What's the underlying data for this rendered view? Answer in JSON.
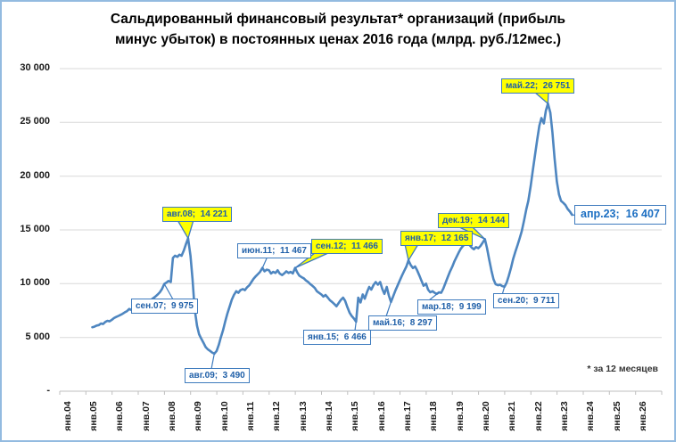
{
  "colors": {
    "line": "#4e86c0",
    "grid": "#d9d9d9",
    "axis": "#bfbfbf",
    "page_border": "#93bbe0",
    "callout_border": "#3e7bbe",
    "callout_text": "#1f5fa8",
    "highlight_fill": "#ffff00",
    "end_label_text": "#1b6ec2"
  },
  "chart_data": {
    "type": "line",
    "title": "Сальдированный финансовый результат* организаций (прибыль\nминус убыток) в постоянных ценах 2016 года (млрд. руб./12мес.)",
    "footnote": "* за 12 месяцев",
    "xlabel": "",
    "ylabel": "",
    "ylim": [
      0,
      30000
    ],
    "ytick_step": 5000,
    "grid": "horizontal",
    "legend": "none",
    "y_tick_labels": [
      "-",
      "5 000",
      "10 000",
      "15 000",
      "20 000",
      "25 000",
      "30 000"
    ],
    "x_categories": [
      "янв.04",
      "янв.05",
      "янв.06",
      "янв.07",
      "янв.08",
      "янв.09",
      "янв.10",
      "янв.11",
      "янв.12",
      "янв.13",
      "янв.14",
      "янв.15",
      "янв.16",
      "янв.17",
      "янв.18",
      "янв.19",
      "янв.20",
      "янв.21",
      "янв.22",
      "янв.23",
      "янв.24",
      "янв.25",
      "янв.26"
    ],
    "series": [
      {
        "name": "Сальдированный финансовый результат (12-мес., пост. цены 2016)",
        "points": [
          [
            2004.92,
            5950
          ],
          [
            2005.0,
            6000
          ],
          [
            2005.08,
            6100
          ],
          [
            2005.17,
            6150
          ],
          [
            2005.25,
            6300
          ],
          [
            2005.33,
            6250
          ],
          [
            2005.42,
            6450
          ],
          [
            2005.5,
            6550
          ],
          [
            2005.58,
            6500
          ],
          [
            2005.67,
            6650
          ],
          [
            2005.75,
            6800
          ],
          [
            2005.83,
            6900
          ],
          [
            2005.92,
            7000
          ],
          [
            2006.0,
            7100
          ],
          [
            2006.08,
            7200
          ],
          [
            2006.17,
            7350
          ],
          [
            2006.25,
            7450
          ],
          [
            2006.33,
            7650
          ],
          [
            2006.42,
            7550
          ],
          [
            2006.5,
            7600
          ],
          [
            2006.58,
            7800
          ],
          [
            2006.67,
            7950
          ],
          [
            2006.75,
            8050
          ],
          [
            2006.83,
            7900
          ],
          [
            2006.92,
            8050
          ],
          [
            2007.0,
            8200
          ],
          [
            2007.08,
            8350
          ],
          [
            2007.17,
            8500
          ],
          [
            2007.25,
            8650
          ],
          [
            2007.33,
            8800
          ],
          [
            2007.42,
            9000
          ],
          [
            2007.5,
            9200
          ],
          [
            2007.58,
            9500
          ],
          [
            2007.67,
            9975
          ],
          [
            2007.75,
            10100
          ],
          [
            2007.83,
            10250
          ],
          [
            2007.92,
            10150
          ],
          [
            2008.0,
            12400
          ],
          [
            2008.08,
            12600
          ],
          [
            2008.17,
            12500
          ],
          [
            2008.25,
            12700
          ],
          [
            2008.33,
            12600
          ],
          [
            2008.42,
            13100
          ],
          [
            2008.5,
            13700
          ],
          [
            2008.58,
            14221
          ],
          [
            2008.67,
            12600
          ],
          [
            2008.75,
            10400
          ],
          [
            2008.83,
            7700
          ],
          [
            2008.92,
            6100
          ],
          [
            2009.0,
            5300
          ],
          [
            2009.08,
            4900
          ],
          [
            2009.17,
            4500
          ],
          [
            2009.25,
            4100
          ],
          [
            2009.33,
            3900
          ],
          [
            2009.42,
            3750
          ],
          [
            2009.5,
            3600
          ],
          [
            2009.58,
            3490
          ],
          [
            2009.67,
            3750
          ],
          [
            2009.75,
            4300
          ],
          [
            2009.83,
            5000
          ],
          [
            2009.92,
            5700
          ],
          [
            2010.0,
            6500
          ],
          [
            2010.08,
            7200
          ],
          [
            2010.17,
            7900
          ],
          [
            2010.25,
            8500
          ],
          [
            2010.33,
            8950
          ],
          [
            2010.42,
            9300
          ],
          [
            2010.5,
            9150
          ],
          [
            2010.58,
            9400
          ],
          [
            2010.67,
            9500
          ],
          [
            2010.75,
            9400
          ],
          [
            2010.83,
            9650
          ],
          [
            2010.92,
            9850
          ],
          [
            2011.0,
            10150
          ],
          [
            2011.08,
            10450
          ],
          [
            2011.17,
            10700
          ],
          [
            2011.25,
            10900
          ],
          [
            2011.33,
            11100
          ],
          [
            2011.42,
            11467
          ],
          [
            2011.5,
            11150
          ],
          [
            2011.58,
            11300
          ],
          [
            2011.67,
            11250
          ],
          [
            2011.75,
            10950
          ],
          [
            2011.83,
            11100
          ],
          [
            2011.92,
            11000
          ],
          [
            2012.0,
            11250
          ],
          [
            2012.08,
            10950
          ],
          [
            2012.17,
            10800
          ],
          [
            2012.25,
            10950
          ],
          [
            2012.33,
            11150
          ],
          [
            2012.42,
            11000
          ],
          [
            2012.5,
            11100
          ],
          [
            2012.58,
            10950
          ],
          [
            2012.67,
            11466
          ],
          [
            2012.75,
            11050
          ],
          [
            2012.83,
            10750
          ],
          [
            2012.92,
            10600
          ],
          [
            2013.0,
            10500
          ],
          [
            2013.08,
            10300
          ],
          [
            2013.17,
            10150
          ],
          [
            2013.25,
            9950
          ],
          [
            2013.33,
            9800
          ],
          [
            2013.42,
            9600
          ],
          [
            2013.5,
            9300
          ],
          [
            2013.58,
            9150
          ],
          [
            2013.67,
            9000
          ],
          [
            2013.75,
            8800
          ],
          [
            2013.83,
            8950
          ],
          [
            2013.92,
            8700
          ],
          [
            2014.0,
            8450
          ],
          [
            2014.08,
            8300
          ],
          [
            2014.17,
            8100
          ],
          [
            2014.25,
            7900
          ],
          [
            2014.33,
            8200
          ],
          [
            2014.42,
            8500
          ],
          [
            2014.5,
            8700
          ],
          [
            2014.58,
            8400
          ],
          [
            2014.67,
            7800
          ],
          [
            2014.75,
            7300
          ],
          [
            2014.83,
            7000
          ],
          [
            2014.92,
            6750
          ],
          [
            2015.0,
            6466
          ],
          [
            2015.08,
            8700
          ],
          [
            2015.17,
            8250
          ],
          [
            2015.25,
            9000
          ],
          [
            2015.33,
            8600
          ],
          [
            2015.42,
            9250
          ],
          [
            2015.5,
            9700
          ],
          [
            2015.58,
            9450
          ],
          [
            2015.67,
            9900
          ],
          [
            2015.75,
            10150
          ],
          [
            2015.83,
            9900
          ],
          [
            2015.92,
            10150
          ],
          [
            2016.0,
            9500
          ],
          [
            2016.08,
            9050
          ],
          [
            2016.17,
            9700
          ],
          [
            2016.25,
            8900
          ],
          [
            2016.33,
            8297
          ],
          [
            2016.42,
            8850
          ],
          [
            2016.5,
            9350
          ],
          [
            2016.58,
            9800
          ],
          [
            2016.67,
            10300
          ],
          [
            2016.75,
            10750
          ],
          [
            2016.83,
            11150
          ],
          [
            2016.92,
            11600
          ],
          [
            2017.0,
            12165
          ],
          [
            2017.08,
            11750
          ],
          [
            2017.17,
            11450
          ],
          [
            2017.25,
            11600
          ],
          [
            2017.33,
            11250
          ],
          [
            2017.42,
            10750
          ],
          [
            2017.5,
            10250
          ],
          [
            2017.58,
            9800
          ],
          [
            2017.67,
            10000
          ],
          [
            2017.75,
            9450
          ],
          [
            2017.83,
            9200
          ],
          [
            2017.92,
            9300
          ],
          [
            2018.0,
            9150
          ],
          [
            2018.08,
            9050
          ],
          [
            2018.17,
            9199
          ],
          [
            2018.25,
            9150
          ],
          [
            2018.33,
            9550
          ],
          [
            2018.42,
            10100
          ],
          [
            2018.5,
            10600
          ],
          [
            2018.58,
            11100
          ],
          [
            2018.67,
            11550
          ],
          [
            2018.75,
            12050
          ],
          [
            2018.83,
            12450
          ],
          [
            2018.92,
            12900
          ],
          [
            2019.0,
            13250
          ],
          [
            2019.08,
            13500
          ],
          [
            2019.17,
            13700
          ],
          [
            2019.25,
            13800
          ],
          [
            2019.33,
            13600
          ],
          [
            2019.42,
            13350
          ],
          [
            2019.5,
            13200
          ],
          [
            2019.58,
            13400
          ],
          [
            2019.67,
            13300
          ],
          [
            2019.75,
            13500
          ],
          [
            2019.83,
            13800
          ],
          [
            2019.92,
            14144
          ],
          [
            2020.0,
            13300
          ],
          [
            2020.08,
            12300
          ],
          [
            2020.17,
            11200
          ],
          [
            2020.25,
            10400
          ],
          [
            2020.33,
            9950
          ],
          [
            2020.42,
            9850
          ],
          [
            2020.5,
            9900
          ],
          [
            2020.58,
            9780
          ],
          [
            2020.67,
            9711
          ],
          [
            2020.75,
            10100
          ],
          [
            2020.83,
            10700
          ],
          [
            2020.92,
            11500
          ],
          [
            2021.0,
            12300
          ],
          [
            2021.08,
            12950
          ],
          [
            2021.17,
            13600
          ],
          [
            2021.25,
            14250
          ],
          [
            2021.33,
            14900
          ],
          [
            2021.42,
            15900
          ],
          [
            2021.5,
            16900
          ],
          [
            2021.58,
            17700
          ],
          [
            2021.67,
            19100
          ],
          [
            2021.75,
            20500
          ],
          [
            2021.83,
            21900
          ],
          [
            2021.92,
            23400
          ],
          [
            2022.0,
            24700
          ],
          [
            2022.08,
            25400
          ],
          [
            2022.17,
            24900
          ],
          [
            2022.25,
            26100
          ],
          [
            2022.33,
            26751
          ],
          [
            2022.42,
            25900
          ],
          [
            2022.5,
            24100
          ],
          [
            2022.58,
            21700
          ],
          [
            2022.67,
            19500
          ],
          [
            2022.75,
            18300
          ],
          [
            2022.83,
            17700
          ],
          [
            2022.92,
            17500
          ],
          [
            2023.0,
            17300
          ],
          [
            2023.08,
            16950
          ],
          [
            2023.17,
            16700
          ],
          [
            2023.25,
            16407
          ]
        ]
      }
    ],
    "annotations": [
      {
        "id": "sen07",
        "label": "сен.07;  9 975",
        "year": 2007.67,
        "value": 9975,
        "variant": "white"
      },
      {
        "id": "avg08",
        "label": "авг.08;  14 221",
        "year": 2008.58,
        "value": 14221,
        "variant": "yellow"
      },
      {
        "id": "avg09",
        "label": "авг.09;  3 490",
        "year": 2009.58,
        "value": 3490,
        "variant": "white"
      },
      {
        "id": "iyun11",
        "label": "июн.11;  11 467",
        "year": 2011.42,
        "value": 11467,
        "variant": "white"
      },
      {
        "id": "sen12",
        "label": "сен.12;  11 466",
        "year": 2012.67,
        "value": 11466,
        "variant": "yellow"
      },
      {
        "id": "yanv15",
        "label": "янв.15;  6 466",
        "year": 2015.0,
        "value": 6466,
        "variant": "white"
      },
      {
        "id": "may16",
        "label": "май.16;  8 297",
        "year": 2016.33,
        "value": 8297,
        "variant": "white"
      },
      {
        "id": "yanv17",
        "label": "янв.17;  12 165",
        "year": 2017.0,
        "value": 12165,
        "variant": "yellow"
      },
      {
        "id": "mar18",
        "label": "мар.18;  9 199",
        "year": 2018.17,
        "value": 9199,
        "variant": "white"
      },
      {
        "id": "dek19",
        "label": "дек.19;  14 144",
        "year": 2019.92,
        "value": 14144,
        "variant": "yellow"
      },
      {
        "id": "sen20",
        "label": "сен.20;  9 711",
        "year": 2020.67,
        "value": 9711,
        "variant": "white"
      },
      {
        "id": "may22",
        "label": "май.22;  26 751",
        "year": 2022.33,
        "value": 26751,
        "variant": "yellow"
      },
      {
        "id": "apr23",
        "label": "апр.23;  16 407",
        "year": 2023.25,
        "value": 16407,
        "variant": "big"
      }
    ]
  }
}
